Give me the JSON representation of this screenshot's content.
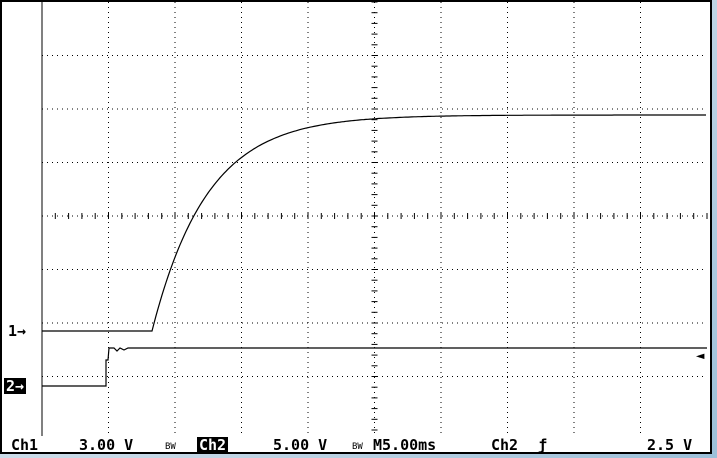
{
  "scope": {
    "channel1_marker": "1→",
    "channel2_marker": "2→",
    "trigger_marker": "◄",
    "status": {
      "ch1_label": "Ch1",
      "ch1_scale": "3.00 V",
      "ch1_bw": "BW",
      "ch2_label": "Ch2",
      "ch2_scale": "5.00 V",
      "ch2_bw": "BW",
      "timebase": "M5.00ms",
      "trigger_source": "Ch2",
      "trigger_slope": "ƒ",
      "trigger_level": "2.5 V"
    },
    "colors": {
      "trace": "#000000",
      "graticule": "#000000",
      "background": "#ffffff"
    }
  }
}
